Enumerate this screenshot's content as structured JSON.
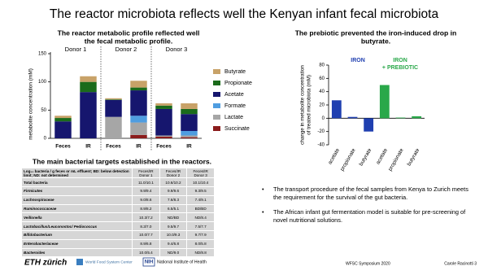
{
  "slide_title": "The reactor microbiota reflects well the Kenyan infant fecal microbiota",
  "chart_data": [
    {
      "type": "stacked_bar",
      "title": [
        "The reactor metabolic profile reflected well",
        "the fecal metabolic profile."
      ],
      "ylabel": "metabolite concentration (mM)",
      "groups": [
        "Donor 1",
        "Donor 2",
        "Donor 3"
      ],
      "categories": [
        "Feces",
        "IR",
        "Feces",
        "IR",
        "Feces",
        "IR"
      ],
      "ylim": [
        0,
        150
      ],
      "yticks": [
        0,
        50,
        100,
        150
      ],
      "series": [
        {
          "name": "Succinate",
          "color": "#8b1c1c",
          "values": [
            0,
            0,
            0,
            6,
            3,
            2
          ]
        },
        {
          "name": "Lactate",
          "color": "#a6a6a6",
          "values": [
            0,
            0,
            38,
            22,
            2,
            3
          ]
        },
        {
          "name": "Formate",
          "color": "#4f9de0",
          "values": [
            0,
            0,
            0,
            12,
            0,
            8
          ]
        },
        {
          "name": "Acetate",
          "color": "#16166e",
          "values": [
            30,
            82,
            30,
            45,
            47,
            30
          ]
        },
        {
          "name": "Propionate",
          "color": "#1b6b1b",
          "values": [
            6,
            18,
            1,
            5,
            6,
            9
          ]
        },
        {
          "name": "Butyrate",
          "color": "#c8a268",
          "values": [
            4,
            10,
            2,
            12,
            4,
            10
          ]
        }
      ]
    },
    {
      "type": "bar",
      "title": [
        "The prebiotic prevented the iron-induced drop in",
        "butyrate."
      ],
      "ylabel": [
        "change in metabolite concentration",
        "of treated microbiota (mM)"
      ],
      "categories": [
        "acetate",
        "propionate",
        "butyrate",
        "acetate",
        "propionate",
        "butyrate"
      ],
      "values": [
        27,
        2,
        -20,
        50,
        1,
        3
      ],
      "colors": [
        "#1f3fb0",
        "#1f3fb0",
        "#1f3fb0",
        "#2aa84a",
        "#2aa84a",
        "#2aa84a"
      ],
      "annotations": [
        {
          "text": "IRON",
          "color": "#1f3fb0"
        },
        {
          "text": "IRON",
          "color": "#2aa84a"
        },
        {
          "text": "+ PREBIOTIC",
          "color": "#2aa84a"
        }
      ],
      "ylim": [
        -40,
        80
      ],
      "yticks": [
        -40,
        -20,
        0,
        20,
        40,
        60,
        80
      ]
    }
  ],
  "table": {
    "title": "The main bacterial targets established in the reactors.",
    "header": [
      "Log₁₀ bacteria / g feces or mL effluent; BD: below detection limit; ND: not determined",
      "Feces/IR Donor 1",
      "Feces/IR Donor 2",
      "Feces/IR Donor 3"
    ],
    "rows": [
      [
        "Total bacteria",
        "11.0/10.1",
        "10.6/10.2",
        "10.1/10.4"
      ],
      [
        "Firmicutes",
        "9.9/9.4",
        "9.9/9.6",
        "9.3/9.5"
      ],
      [
        "Lachnospiraceae",
        "9.0/8.6",
        "7.6/8.3",
        "7.4/9.1"
      ],
      [
        "Ruminococcaceae",
        "8.9/8.2",
        "6.5/5.1",
        "BD/BD"
      ],
      [
        "Veillonella",
        "10.3/7.2",
        "ND/BD",
        "ND/8.4"
      ],
      [
        "Lactobacillus/Leuconostoc/ Pediococcus",
        "8.3/7.0",
        "9.5/9.7",
        "7.5/7.7"
      ],
      [
        "Bifidobacterium",
        "10.0/7.7",
        "10.0/9.3",
        "9.7/7.9"
      ],
      [
        "Enterobacteriaceae",
        "8.9/6.8",
        "9.4/6.8",
        "8.0/5.8"
      ],
      [
        "Bacteroides",
        "10.0/5.4",
        "ND/9.0",
        "ND/8.8"
      ]
    ]
  },
  "bullets": [
    "The transport procedure of the fecal samples from Kenya to Zurich meets the requirement for the survival of the gut bacteria.",
    "The African infant gut fermentation model is suitable for pre-screening of novel nutritional solutions."
  ],
  "footer": {
    "eth": "ETH zürich",
    "wfsc": "World Food System Center",
    "nih": "NIH",
    "nih_name": "National Institute of Health",
    "event": "WFSC Symposium 2020",
    "author": "Carole Racinotti 3"
  }
}
